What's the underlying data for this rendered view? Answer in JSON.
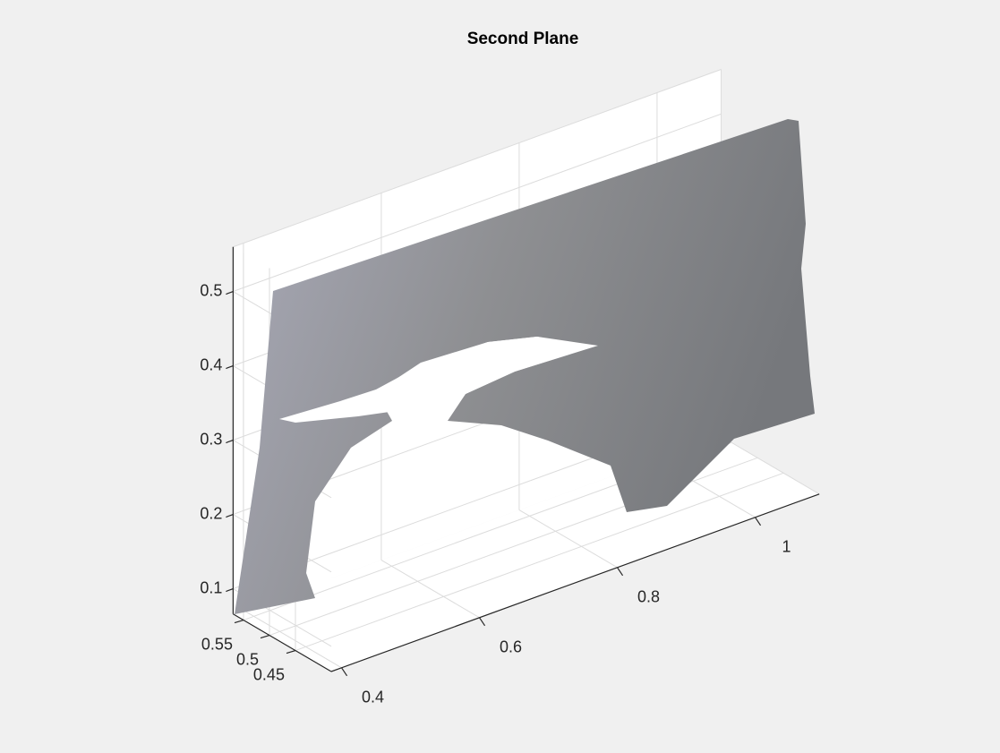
{
  "chart_data": {
    "type": "scatter3",
    "title": "Second Plane",
    "xlim": [
      0.385,
      1.093
    ],
    "xticks": [
      0.4,
      0.6,
      0.8,
      1
    ],
    "ylim": [
      0.381,
      0.57
    ],
    "yticks": [
      0.45,
      0.5,
      0.55
    ],
    "zlim": [
      0.066,
      0.56
    ],
    "zticks": [
      0.1,
      0.2,
      0.3,
      0.4,
      0.5
    ],
    "grid": true
  }
}
